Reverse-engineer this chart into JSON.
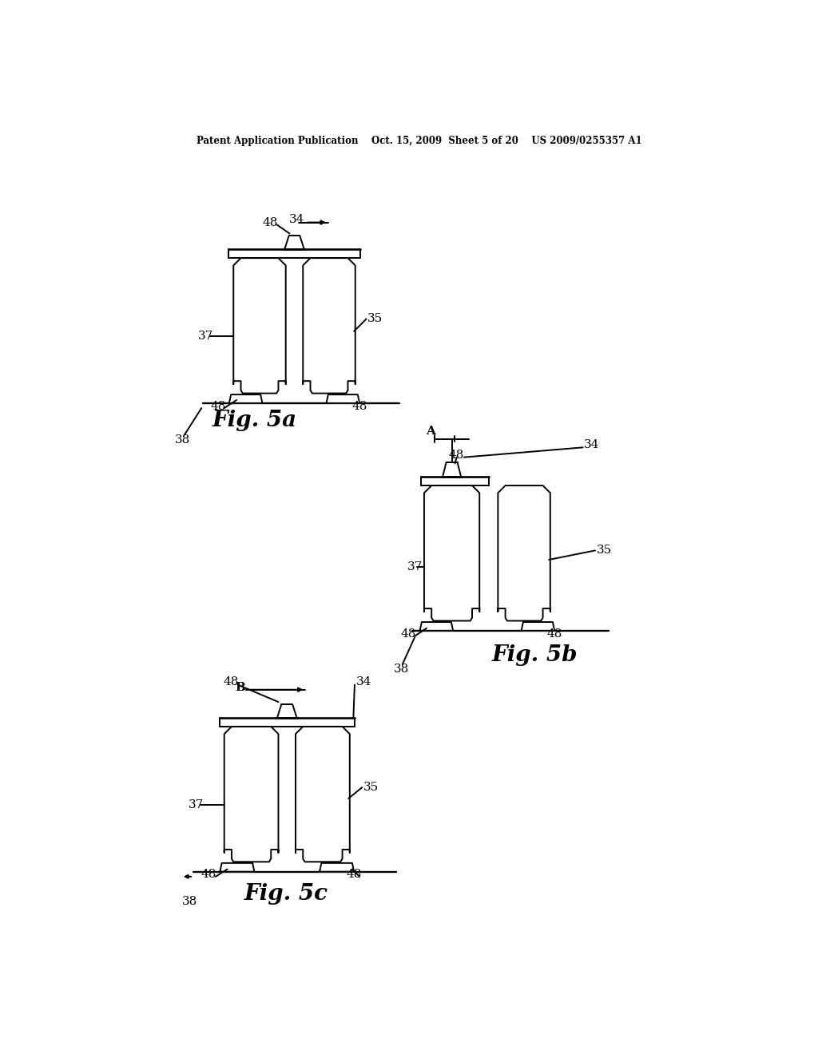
{
  "background_color": "#ffffff",
  "header_text": "Patent Application Publication    Oct. 15, 2009  Sheet 5 of 20    US 2009/0255357 A1",
  "fig5a_label": "Fig. 5a",
  "fig5b_label": "Fig. 5b",
  "fig5c_label": "Fig. 5c",
  "line_color": "#000000",
  "line_width": 1.4,
  "label_fontsize": 11,
  "fig_label_fontsize": 20
}
